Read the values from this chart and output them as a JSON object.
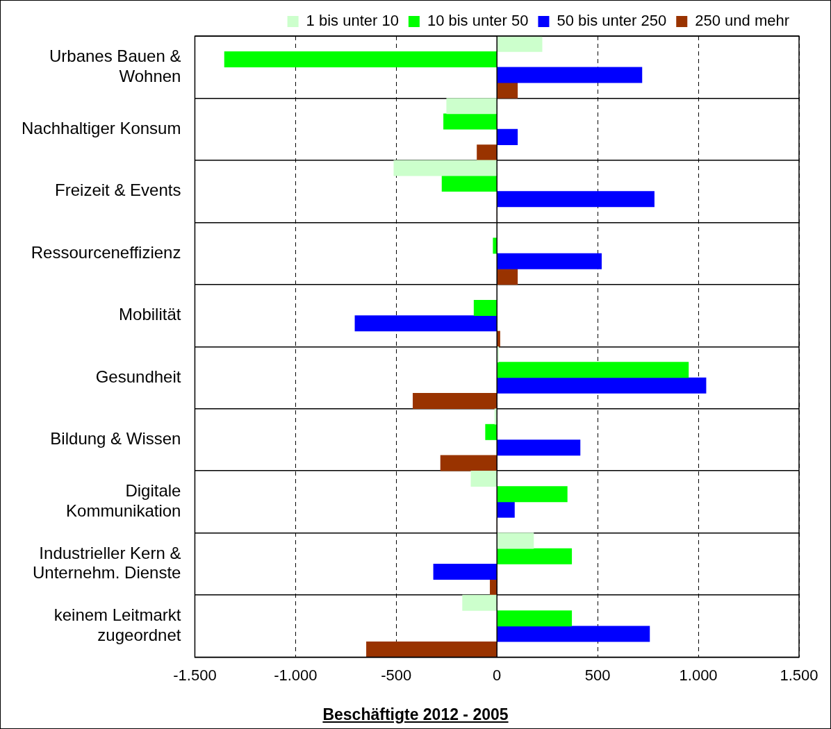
{
  "chart_data": {
    "type": "bar",
    "orientation": "horizontal",
    "xlabel": "Beschäftigte 2012 - 2005",
    "categories": [
      "Urbanes Bauen &\nWohnen",
      "Nachhaltiger Konsum",
      "Freizeit & Events",
      "Ressourceneffizienz",
      "Mobilität",
      "Gesundheit",
      "Bildung & Wissen",
      "Digitale\nKommunikation",
      "Industrieller Kern &\nUnternehm. Dienste",
      "keinem Leitmarkt\nzugeordnet"
    ],
    "series": [
      {
        "name": "1 bis unter 10",
        "color": "#ccffcc",
        "values": [
          224,
          -250,
          -512,
          0,
          0,
          8,
          -11,
          -129,
          182,
          -171
        ]
      },
      {
        "name": "10 bis unter 50",
        "color": "#00ff00",
        "values": [
          -1353,
          -265,
          -273,
          -19,
          -114,
          951,
          -57,
          349,
          371,
          371
        ]
      },
      {
        "name": "50 bis unter 250",
        "color": "#0000ff",
        "values": [
          720,
          102,
          781,
          519,
          -705,
          1038,
          413,
          87,
          -315,
          758
        ]
      },
      {
        "name": "250 und mehr",
        "color": "#993300",
        "values": [
          102,
          -99,
          0,
          102,
          15,
          -417,
          -280,
          0,
          -34,
          -648
        ]
      }
    ],
    "xlim": [
      -1500,
      1500
    ],
    "xticks": [
      {
        "value": -1500,
        "label": "-1.500"
      },
      {
        "value": -1000,
        "label": "-1.000"
      },
      -500,
      0,
      500,
      {
        "value": 1000,
        "label": "1.000"
      },
      {
        "value": 1500,
        "label": "1.500"
      }
    ],
    "grid": true,
    "legend": "top"
  }
}
